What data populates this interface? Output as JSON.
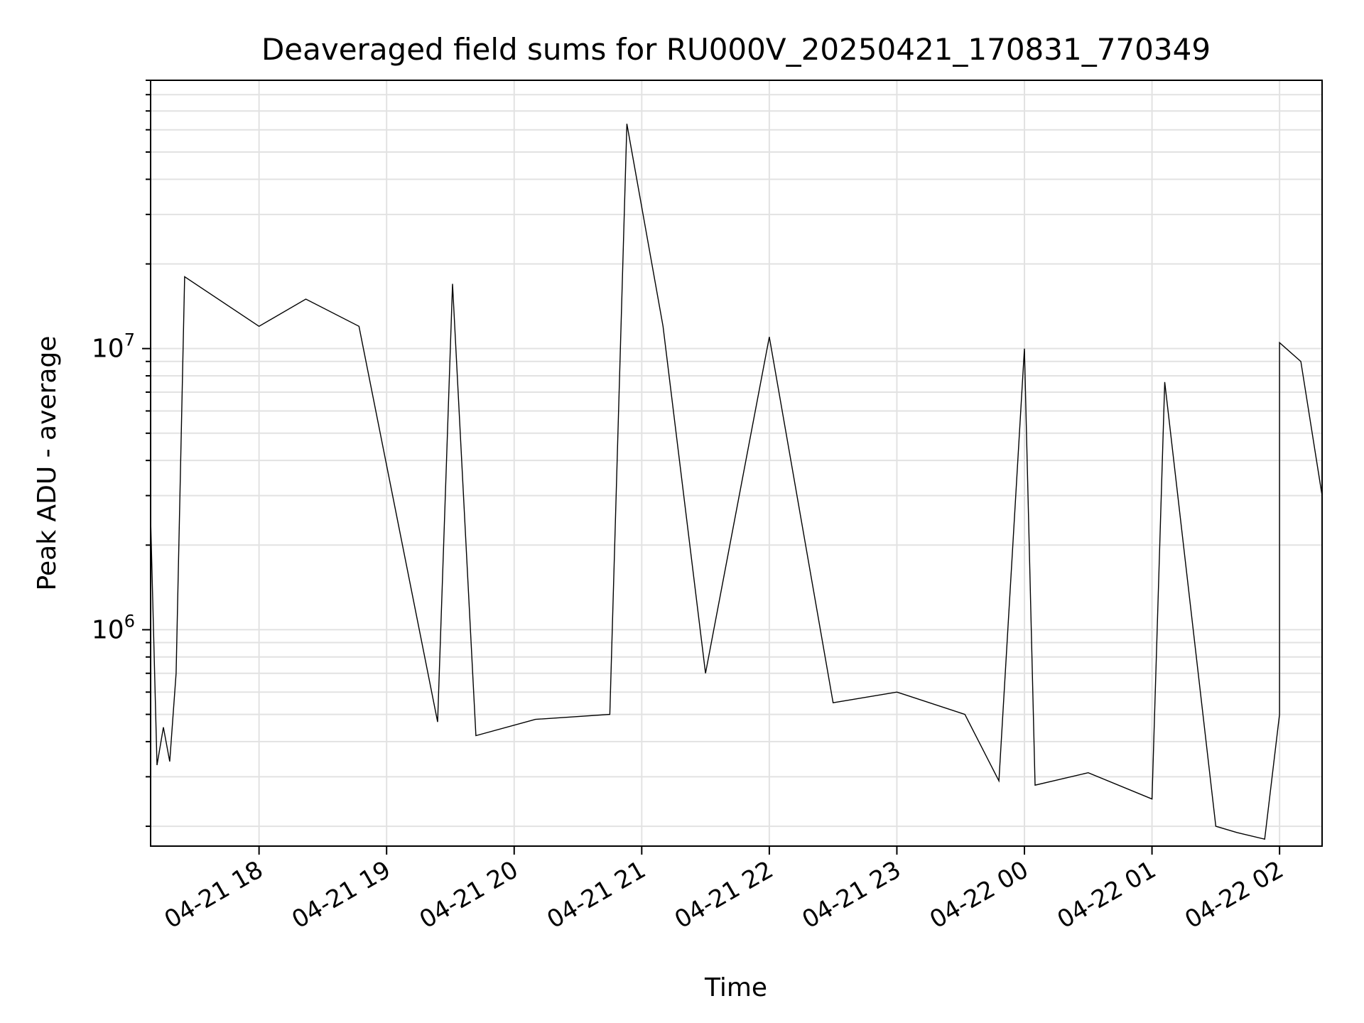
{
  "chart_data": {
    "type": "line",
    "title": "Deaveraged field sums for RU000V_20250421_170831_770349",
    "xlabel": "Time",
    "ylabel": "Peak ADU - average",
    "yscale": "log",
    "grid": "major and minor",
    "xlim": [
      "2025-04-21 17:09",
      "2025-04-22 02:20"
    ],
    "ylim": [
      170000,
      90000000
    ],
    "xticks": [
      {
        "label": "04-21 18",
        "t": "2025-04-21 18:00"
      },
      {
        "label": "04-21 19",
        "t": "2025-04-21 19:00"
      },
      {
        "label": "04-21 20",
        "t": "2025-04-21 20:00"
      },
      {
        "label": "04-21 21",
        "t": "2025-04-21 21:00"
      },
      {
        "label": "04-21 22",
        "t": "2025-04-21 22:00"
      },
      {
        "label": "04-21 23",
        "t": "2025-04-21 23:00"
      },
      {
        "label": "04-22 00",
        "t": "2025-04-22 00:00"
      },
      {
        "label": "04-22 01",
        "t": "2025-04-22 01:00"
      },
      {
        "label": "04-22 02",
        "t": "2025-04-22 02:00"
      }
    ],
    "yticks": [
      {
        "base": "10",
        "exp": "6",
        "value": 1000000
      },
      {
        "base": "10",
        "exp": "7",
        "value": 10000000
      }
    ],
    "series": [
      {
        "color": "#000000",
        "points": [
          {
            "t": "2025-04-21 17:09",
            "y": 2500000
          },
          {
            "t": "2025-04-21 17:12",
            "y": 330000
          },
          {
            "t": "2025-04-21 17:15",
            "y": 450000
          },
          {
            "t": "2025-04-21 17:18",
            "y": 340000
          },
          {
            "t": "2025-04-21 17:21",
            "y": 700000
          },
          {
            "t": "2025-04-21 17:25",
            "y": 18000000
          },
          {
            "t": "2025-04-21 18:00",
            "y": 12000000
          },
          {
            "t": "2025-04-21 18:22",
            "y": 15000000
          },
          {
            "t": "2025-04-21 18:47",
            "y": 12000000
          },
          {
            "t": "2025-04-21 19:31",
            "y": 17000000
          },
          {
            "t": "2025-04-21 19:24",
            "y": 470000
          },
          {
            "t": "2025-04-21 19:42",
            "y": 420000
          },
          {
            "t": "2025-04-21 20:10",
            "y": 480000
          },
          {
            "t": "2025-04-21 20:45",
            "y": 500000
          },
          {
            "t": "2025-04-21 20:53",
            "y": 63000000
          },
          {
            "t": "2025-04-21 21:10",
            "y": 12000000
          },
          {
            "t": "2025-04-21 21:30",
            "y": 700000
          },
          {
            "t": "2025-04-21 22:00",
            "y": 11000000
          },
          {
            "t": "2025-04-21 22:30",
            "y": 550000
          },
          {
            "t": "2025-04-21 23:00",
            "y": 600000
          },
          {
            "t": "2025-04-21 23:32",
            "y": 500000
          },
          {
            "t": "2025-04-21 23:48",
            "y": 290000
          },
          {
            "t": "2025-04-22 00:00",
            "y": 10000000
          },
          {
            "t": "2025-04-22 00:05",
            "y": 280000
          },
          {
            "t": "2025-04-22 00:30",
            "y": 310000
          },
          {
            "t": "2025-04-22 01:00",
            "y": 250000
          },
          {
            "t": "2025-04-22 01:06",
            "y": 7600000
          },
          {
            "t": "2025-04-22 01:30",
            "y": 200000
          },
          {
            "t": "2025-04-22 01:40",
            "y": 190000
          },
          {
            "t": "2025-04-22 01:53",
            "y": 180000
          },
          {
            "t": "2025-04-22 02:00",
            "y": 500000
          },
          {
            "t": "2025-04-22 02:00",
            "y": 10500000
          },
          {
            "t": "2025-04-22 02:10",
            "y": 9000000
          },
          {
            "t": "2025-04-22 02:20",
            "y": 3000000
          }
        ]
      }
    ]
  }
}
